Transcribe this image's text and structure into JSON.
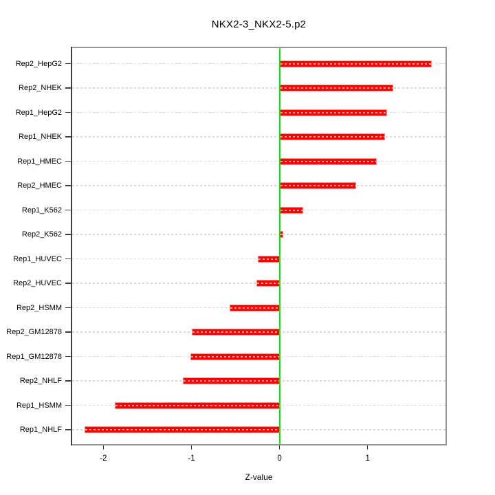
{
  "chart_data": {
    "type": "bar",
    "orientation": "horizontal",
    "title": "NKX2-3_NKX2-5.p2",
    "xlabel": "Z-value",
    "ylabel": "",
    "categories": [
      "Rep2_HepG2",
      "Rep2_NHEK",
      "Rep1_HepG2",
      "Rep1_NHEK",
      "Rep1_HMEC",
      "Rep2_HMEC",
      "Rep1_K562",
      "Rep2_K562",
      "Rep1_HUVEC",
      "Rep2_HUVEC",
      "Rep2_HSMM",
      "Rep2_GM12878",
      "Rep1_GM12878",
      "Rep2_NHLF",
      "Rep1_HSMM",
      "Rep1_NHLF"
    ],
    "values": [
      1.73,
      1.29,
      1.22,
      1.2,
      1.1,
      0.87,
      0.27,
      0.04,
      -0.25,
      -0.26,
      -0.57,
      -1.0,
      -1.01,
      -1.1,
      -1.87,
      -2.21
    ],
    "xticks": [
      -2,
      -1,
      0,
      1
    ],
    "xlim": [
      -2.37,
      1.9
    ],
    "grid": "dotted horizontal gridline per category",
    "zero_reference_line": 0,
    "legend": null,
    "colors": {
      "bar_fill": "#ff0000",
      "bar_border": "#ff9090",
      "zero_line": "#00ee00",
      "gridline": "#d7d7d7",
      "box_border": "#969696",
      "axis": "#3c3c3c",
      "text": "#000000",
      "background": "#ffffff"
    }
  }
}
